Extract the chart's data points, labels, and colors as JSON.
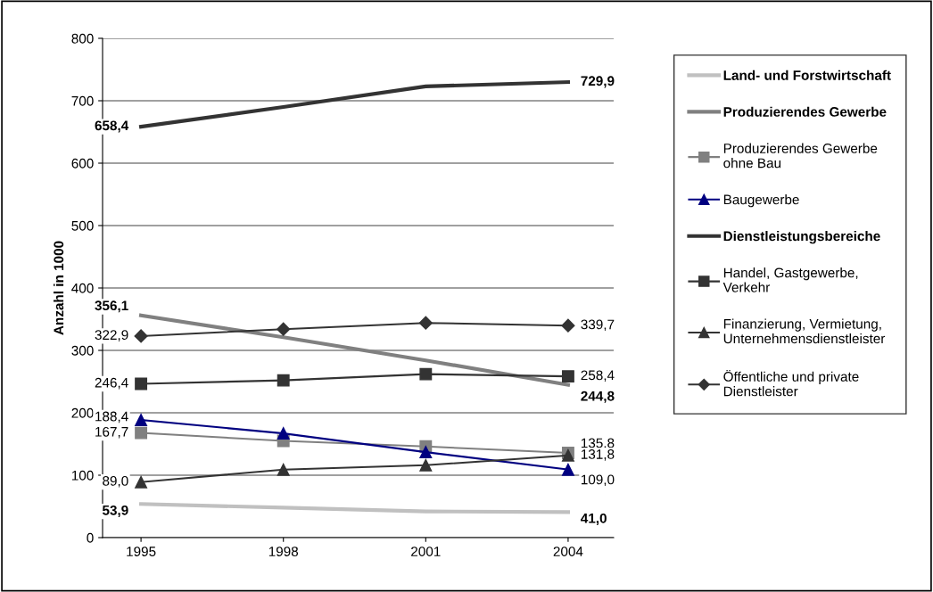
{
  "chart_data": {
    "type": "line",
    "ylabel": "Anzahl in 1000",
    "categories": [
      "1995",
      "1998",
      "2001",
      "2004"
    ],
    "ylim": [
      0,
      800
    ],
    "yticks": [
      0,
      100,
      200,
      300,
      400,
      500,
      600,
      700,
      800
    ],
    "grid": "y",
    "legend": "right",
    "series": [
      {
        "name": "Land- und Forstwirtschaft",
        "color": "#c0c0c0",
        "marker": "none",
        "values": [
          53.9,
          48,
          42,
          41.0
        ],
        "value_labels": [
          "53,9",
          null,
          null,
          "41,0"
        ]
      },
      {
        "name": "Produzierendes Gewerbe",
        "color": "#808080",
        "marker": "none",
        "values": [
          356.1,
          321,
          284,
          244.8
        ],
        "value_labels": [
          "356,1",
          null,
          null,
          "244,8"
        ]
      },
      {
        "name": "Produzierendes Gewerbe\nohne Bau",
        "color": "#808080",
        "marker": "square",
        "values": [
          167.7,
          155,
          146,
          135.8
        ],
        "value_labels": [
          "167,7",
          null,
          null,
          "135,8"
        ]
      },
      {
        "name": "Baugewerbe",
        "color": "#000080",
        "marker": "triangle",
        "values": [
          188.4,
          167,
          137,
          109.0
        ],
        "value_labels": [
          "188,4",
          null,
          null,
          "109,0"
        ]
      },
      {
        "name": "Dienstleistungsbereiche",
        "color": "#333333",
        "marker": "none",
        "values": [
          658.4,
          690,
          723,
          729.9
        ],
        "value_labels": [
          "658,4",
          null,
          null,
          "729,9"
        ]
      },
      {
        "name": "Handel, Gastgewerbe,\nVerkehr",
        "color": "#333333",
        "marker": "square",
        "values": [
          246.4,
          252,
          262,
          258.4
        ],
        "value_labels": [
          "246,4",
          null,
          null,
          "258,4"
        ]
      },
      {
        "name": "Finanzierung, Vermietung,\nUnternehmensdienstleister",
        "color": "#333333",
        "marker": "triangle",
        "values": [
          89.0,
          109,
          116,
          131.8
        ],
        "value_labels": [
          "89,0",
          null,
          null,
          "131,8"
        ]
      },
      {
        "name": "Öffentliche und private\nDienstleister",
        "color": "#333333",
        "marker": "diamond",
        "values": [
          322.9,
          334,
          344,
          339.7
        ],
        "value_labels": [
          "322,9",
          null,
          null,
          "339,7"
        ]
      }
    ]
  }
}
